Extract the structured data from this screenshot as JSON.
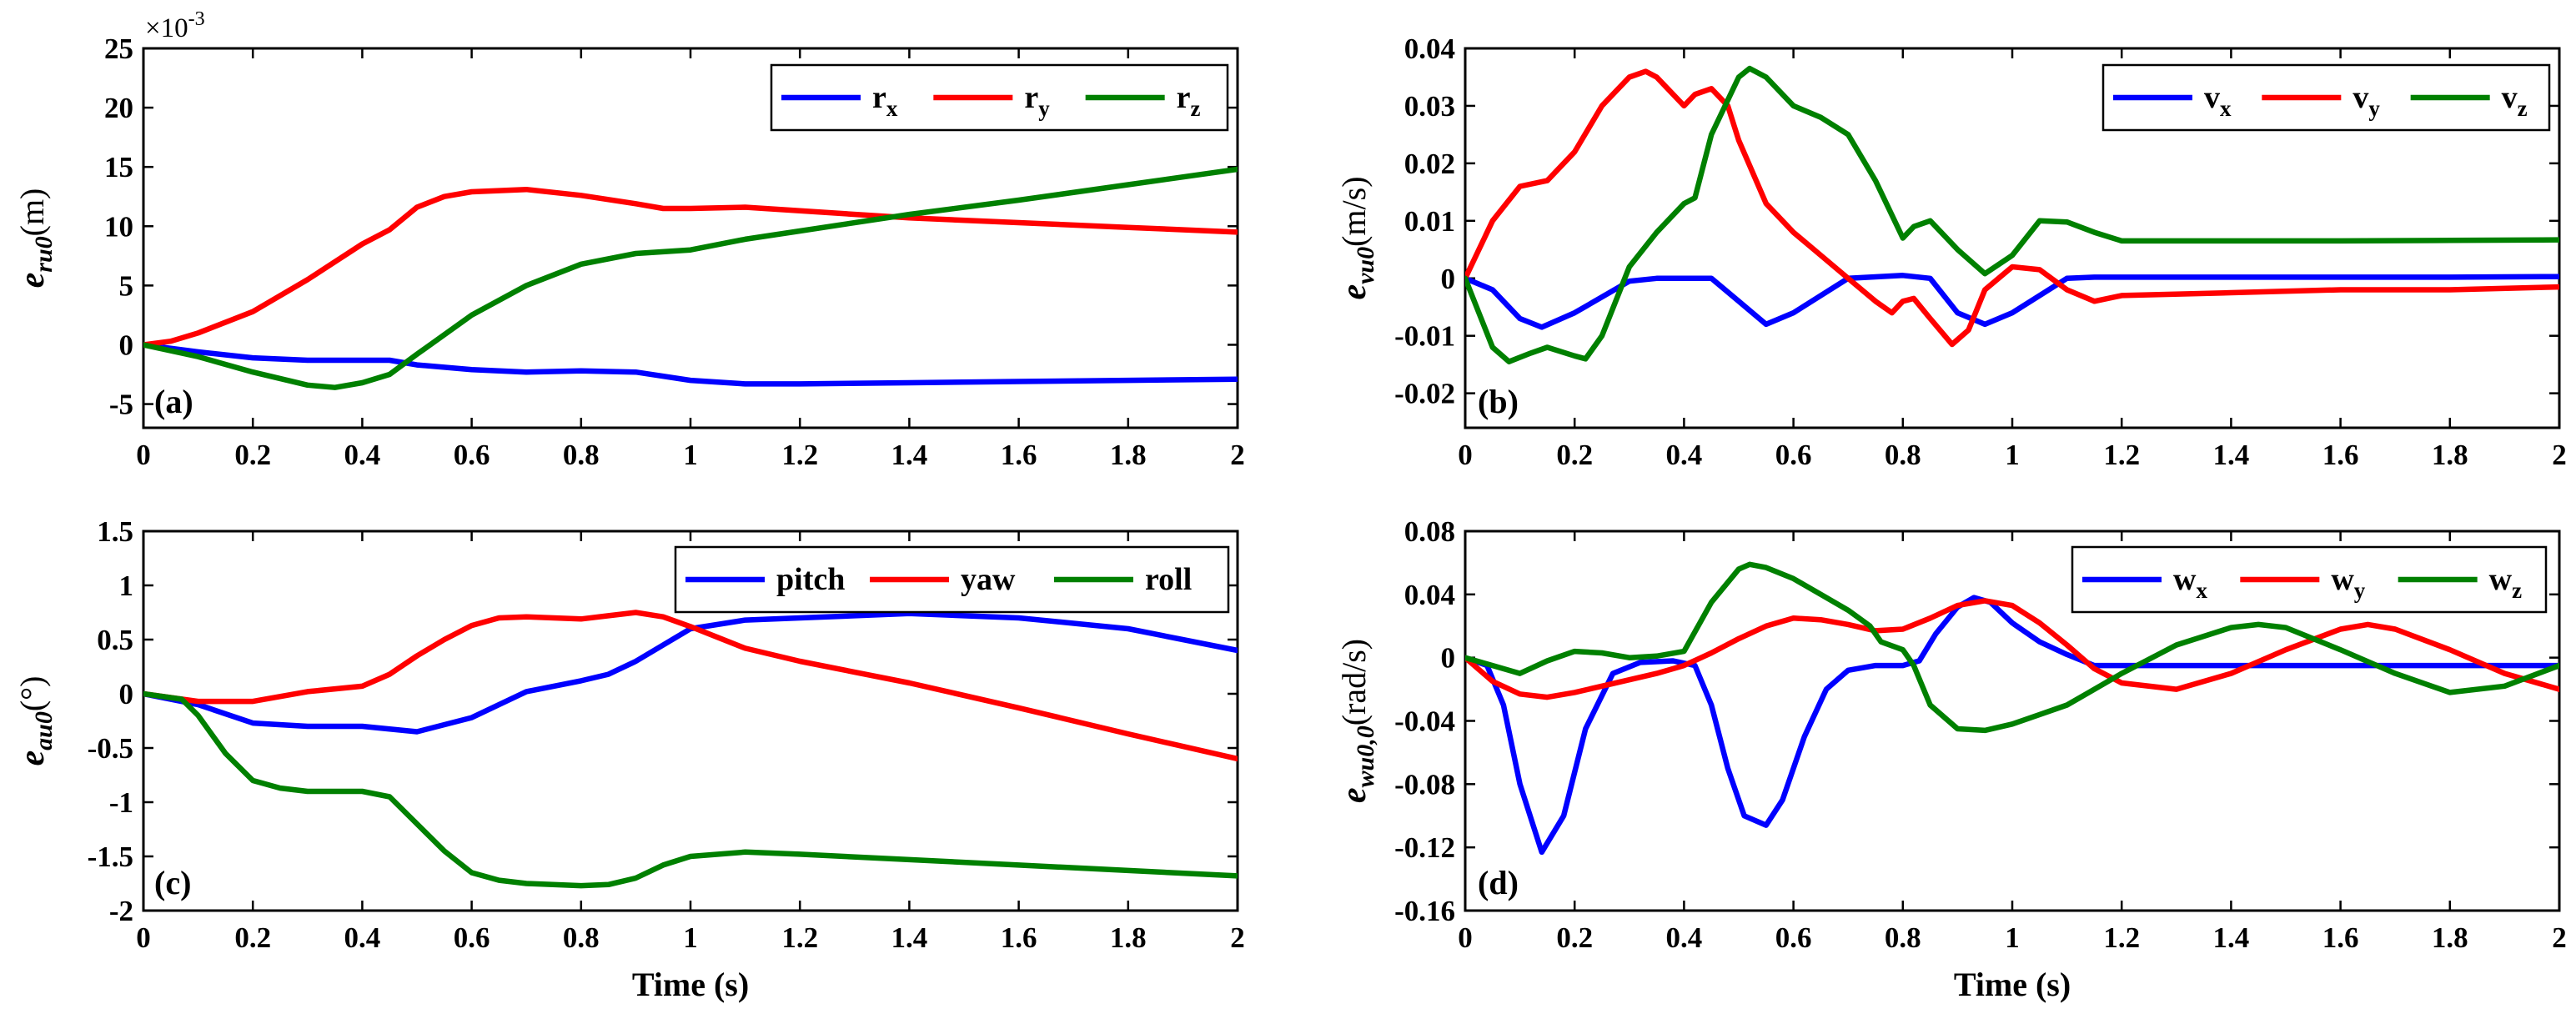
{
  "colors": {
    "blue": "#0000ff",
    "red": "#ff0000",
    "green": "#008000"
  },
  "chart_data": [
    {
      "type": "line",
      "panel": "(a)",
      "ylabel": {
        "main": "e",
        "sub": "ru0",
        "unit": "(m)"
      },
      "exponent": {
        "base": "×10",
        "power": "-3"
      },
      "xlabel": "",
      "xlim": [
        0,
        2
      ],
      "ylim": [
        -7,
        25
      ],
      "xticks": [
        0,
        0.2,
        0.4,
        0.6,
        0.8,
        1,
        1.2,
        1.4,
        1.6,
        1.8,
        2
      ],
      "xticklabels": [
        "0",
        "0.2",
        "0.4",
        "0.6",
        "0.8",
        "1",
        "1.2",
        "1.4",
        "1.6",
        "1.8",
        "2"
      ],
      "yticks": [
        -5,
        0,
        5,
        10,
        15,
        20,
        25
      ],
      "yticklabels": [
        "-5",
        "0",
        "5",
        "10",
        "15",
        "20",
        "25"
      ],
      "legend": {
        "position": "top-right"
      },
      "series": [
        {
          "name": "r",
          "sub": "x",
          "color": "blue",
          "x": [
            0,
            0.1,
            0.2,
            0.3,
            0.4,
            0.45,
            0.5,
            0.6,
            0.7,
            0.8,
            0.9,
            1.0,
            1.1,
            1.2,
            1.4,
            1.6,
            1.8,
            2.0
          ],
          "y": [
            0,
            -0.6,
            -1.1,
            -1.3,
            -1.3,
            -1.3,
            -1.7,
            -2.1,
            -2.3,
            -2.2,
            -2.3,
            -3.0,
            -3.3,
            -3.3,
            -3.2,
            -3.1,
            -3.0,
            -2.9
          ]
        },
        {
          "name": "r",
          "sub": "y",
          "color": "red",
          "x": [
            0,
            0.05,
            0.1,
            0.2,
            0.3,
            0.4,
            0.45,
            0.5,
            0.55,
            0.6,
            0.7,
            0.8,
            0.9,
            0.95,
            1.0,
            1.1,
            1.2,
            1.4,
            1.6,
            1.8,
            2.0
          ],
          "y": [
            0,
            0.3,
            1.0,
            2.8,
            5.5,
            8.5,
            9.7,
            11.6,
            12.5,
            12.9,
            13.1,
            12.6,
            11.9,
            11.5,
            11.5,
            11.6,
            11.3,
            10.7,
            10.3,
            9.9,
            9.5
          ]
        },
        {
          "name": "r",
          "sub": "z",
          "color": "green",
          "x": [
            0,
            0.1,
            0.2,
            0.3,
            0.35,
            0.4,
            0.45,
            0.5,
            0.6,
            0.7,
            0.8,
            0.9,
            1.0,
            1.1,
            1.2,
            1.4,
            1.6,
            1.8,
            2.0
          ],
          "y": [
            0,
            -1.0,
            -2.3,
            -3.4,
            -3.6,
            -3.2,
            -2.5,
            -0.8,
            2.5,
            5.0,
            6.8,
            7.7,
            8.0,
            8.9,
            9.6,
            11.0,
            12.2,
            13.5,
            14.8
          ]
        }
      ]
    },
    {
      "type": "line",
      "panel": "(b)",
      "ylabel": {
        "main": "e",
        "sub": "vu0",
        "unit": "(m/s)"
      },
      "xlabel": "",
      "xlim": [
        0,
        2
      ],
      "ylim": [
        -0.026,
        0.04
      ],
      "xticks": [
        0,
        0.2,
        0.4,
        0.6,
        0.8,
        1,
        1.2,
        1.4,
        1.6,
        1.8,
        2
      ],
      "xticklabels": [
        "0",
        "0.2",
        "0.4",
        "0.6",
        "0.8",
        "1",
        "1.2",
        "1.4",
        "1.6",
        "1.8",
        "2"
      ],
      "yticks": [
        -0.02,
        -0.01,
        0,
        0.01,
        0.02,
        0.03,
        0.04
      ],
      "yticklabels": [
        "-0.02",
        "-0.01",
        "0",
        "0.01",
        "0.02",
        "0.03",
        "0.04"
      ],
      "legend": {
        "position": "top-right"
      },
      "series": [
        {
          "name": "v",
          "sub": "x",
          "color": "blue",
          "x": [
            0,
            0.05,
            0.1,
            0.14,
            0.2,
            0.3,
            0.35,
            0.4,
            0.45,
            0.5,
            0.55,
            0.6,
            0.7,
            0.8,
            0.85,
            0.9,
            0.95,
            1.0,
            1.1,
            1.15,
            1.2,
            1.4,
            1.6,
            1.8,
            2.0
          ],
          "y": [
            0,
            -0.002,
            -0.007,
            -0.0085,
            -0.006,
            -0.0005,
            0,
            0,
            0,
            -0.004,
            -0.008,
            -0.006,
            0,
            0.0005,
            0,
            -0.006,
            -0.008,
            -0.006,
            0,
            0.0002,
            0.0002,
            0.0002,
            0.0002,
            0.0002,
            0.0003
          ]
        },
        {
          "name": "v",
          "sub": "y",
          "color": "red",
          "x": [
            0,
            0.05,
            0.1,
            0.15,
            0.2,
            0.25,
            0.3,
            0.33,
            0.35,
            0.4,
            0.42,
            0.45,
            0.48,
            0.5,
            0.55,
            0.6,
            0.65,
            0.7,
            0.75,
            0.78,
            0.8,
            0.82,
            0.85,
            0.89,
            0.92,
            0.95,
            1.0,
            1.05,
            1.1,
            1.15,
            1.2,
            1.4,
            1.6,
            1.8,
            2.0
          ],
          "y": [
            0,
            0.01,
            0.016,
            0.017,
            0.022,
            0.03,
            0.035,
            0.036,
            0.035,
            0.03,
            0.032,
            0.033,
            0.03,
            0.024,
            0.013,
            0.008,
            0.004,
            0,
            -0.004,
            -0.006,
            -0.004,
            -0.0035,
            -0.007,
            -0.0115,
            -0.009,
            -0.002,
            0.002,
            0.0015,
            -0.002,
            -0.004,
            -0.003,
            -0.0025,
            -0.002,
            -0.002,
            -0.0015
          ]
        },
        {
          "name": "v",
          "sub": "z",
          "color": "green",
          "x": [
            0,
            0.05,
            0.08,
            0.12,
            0.15,
            0.2,
            0.22,
            0.25,
            0.3,
            0.35,
            0.4,
            0.42,
            0.45,
            0.5,
            0.52,
            0.55,
            0.6,
            0.65,
            0.7,
            0.75,
            0.8,
            0.82,
            0.85,
            0.9,
            0.95,
            1.0,
            1.05,
            1.1,
            1.15,
            1.2,
            1.4,
            1.6,
            1.8,
            2.0
          ],
          "y": [
            0,
            -0.012,
            -0.0145,
            -0.013,
            -0.012,
            -0.0135,
            -0.014,
            -0.01,
            0.002,
            0.008,
            0.013,
            0.014,
            0.025,
            0.035,
            0.0365,
            0.035,
            0.03,
            0.028,
            0.025,
            0.017,
            0.007,
            0.009,
            0.01,
            0.005,
            0.0008,
            0.004,
            0.01,
            0.0098,
            0.008,
            0.0065,
            0.0065,
            0.0065,
            0.0066,
            0.0067
          ]
        }
      ]
    },
    {
      "type": "line",
      "panel": "(c)",
      "ylabel": {
        "main": "e",
        "sub": "au0",
        "unit": "(°)"
      },
      "xlabel": "Time (s)",
      "xlim": [
        0,
        2
      ],
      "ylim": [
        -2,
        1.5
      ],
      "xticks": [
        0,
        0.2,
        0.4,
        0.6,
        0.8,
        1,
        1.2,
        1.4,
        1.6,
        1.8,
        2
      ],
      "xticklabels": [
        "0",
        "0.2",
        "0.4",
        "0.6",
        "0.8",
        "1",
        "1.2",
        "1.4",
        "1.6",
        "1.8",
        "2"
      ],
      "yticks": [
        -2,
        -1.5,
        -1,
        -0.5,
        0,
        0.5,
        1,
        1.5
      ],
      "yticklabels": [
        "-2",
        "-1.5",
        "-1",
        "-0.5",
        "0",
        "0.5",
        "1",
        "1.5"
      ],
      "legend": {
        "position": "top-right"
      },
      "series": [
        {
          "name": "pitch",
          "sub": "",
          "color": "blue",
          "x": [
            0,
            0.1,
            0.2,
            0.3,
            0.4,
            0.5,
            0.6,
            0.7,
            0.8,
            0.85,
            0.9,
            0.95,
            1.0,
            1.1,
            1.2,
            1.4,
            1.6,
            1.8,
            2.0
          ],
          "y": [
            0,
            -0.1,
            -0.27,
            -0.3,
            -0.3,
            -0.35,
            -0.22,
            0.02,
            0.12,
            0.18,
            0.3,
            0.45,
            0.6,
            0.68,
            0.7,
            0.74,
            0.7,
            0.6,
            0.4
          ]
        },
        {
          "name": "yaw",
          "sub": "",
          "color": "red",
          "x": [
            0,
            0.1,
            0.2,
            0.3,
            0.4,
            0.45,
            0.5,
            0.55,
            0.6,
            0.65,
            0.7,
            0.8,
            0.85,
            0.9,
            0.95,
            1.0,
            1.1,
            1.2,
            1.4,
            1.6,
            1.8,
            2.0
          ],
          "y": [
            0,
            -0.07,
            -0.07,
            0.02,
            0.07,
            0.18,
            0.35,
            0.5,
            0.63,
            0.7,
            0.71,
            0.69,
            0.72,
            0.75,
            0.71,
            0.62,
            0.42,
            0.3,
            0.1,
            -0.13,
            -0.37,
            -0.6
          ]
        },
        {
          "name": "roll",
          "sub": "",
          "color": "green",
          "x": [
            0,
            0.07,
            0.1,
            0.15,
            0.2,
            0.25,
            0.3,
            0.4,
            0.45,
            0.5,
            0.55,
            0.6,
            0.65,
            0.7,
            0.8,
            0.85,
            0.9,
            0.95,
            1.0,
            1.1,
            1.2,
            1.4,
            1.6,
            1.8,
            2.0
          ],
          "y": [
            0,
            -0.05,
            -0.2,
            -0.55,
            -0.8,
            -0.87,
            -0.9,
            -0.9,
            -0.95,
            -1.2,
            -1.45,
            -1.65,
            -1.72,
            -1.75,
            -1.77,
            -1.76,
            -1.7,
            -1.58,
            -1.5,
            -1.46,
            -1.48,
            -1.53,
            -1.58,
            -1.63,
            -1.68
          ]
        }
      ]
    },
    {
      "type": "line",
      "panel": "(d)",
      "ylabel": {
        "main": "e",
        "sub": "wu0,0",
        "unit": "(rad/s)"
      },
      "xlabel": "Time (s)",
      "xlim": [
        0,
        2
      ],
      "ylim": [
        -0.16,
        0.08
      ],
      "xticks": [
        0,
        0.2,
        0.4,
        0.6,
        0.8,
        1,
        1.2,
        1.4,
        1.6,
        1.8,
        2
      ],
      "xticklabels": [
        "0",
        "0.2",
        "0.4",
        "0.6",
        "0.8",
        "1",
        "1.2",
        "1.4",
        "1.6",
        "1.8",
        "2"
      ],
      "yticks": [
        -0.16,
        -0.12,
        -0.08,
        -0.04,
        0,
        0.04,
        0.08
      ],
      "yticklabels": [
        "-0.16",
        "-0.12",
        "-0.08",
        "-0.04",
        "0",
        "0.04",
        "0.08"
      ],
      "legend": {
        "position": "top-right"
      },
      "series": [
        {
          "name": "w",
          "sub": "x",
          "color": "blue",
          "x": [
            0,
            0.04,
            0.07,
            0.1,
            0.14,
            0.18,
            0.22,
            0.27,
            0.32,
            0.38,
            0.42,
            0.45,
            0.48,
            0.51,
            0.55,
            0.58,
            0.62,
            0.66,
            0.7,
            0.75,
            0.8,
            0.83,
            0.86,
            0.9,
            0.93,
            0.96,
            1.0,
            1.05,
            1.1,
            1.15,
            1.2,
            1.4,
            1.6,
            1.8,
            2.0
          ],
          "y": [
            0,
            -0.005,
            -0.03,
            -0.08,
            -0.123,
            -0.1,
            -0.045,
            -0.01,
            -0.003,
            -0.002,
            -0.005,
            -0.03,
            -0.07,
            -0.1,
            -0.106,
            -0.09,
            -0.05,
            -0.02,
            -0.008,
            -0.005,
            -0.005,
            -0.002,
            0.015,
            0.032,
            0.038,
            0.035,
            0.022,
            0.01,
            0.002,
            -0.005,
            -0.005,
            -0.005,
            -0.005,
            -0.005,
            -0.005
          ]
        },
        {
          "name": "w",
          "sub": "y",
          "color": "red",
          "x": [
            0,
            0.05,
            0.1,
            0.15,
            0.2,
            0.25,
            0.3,
            0.35,
            0.4,
            0.45,
            0.5,
            0.55,
            0.6,
            0.65,
            0.7,
            0.75,
            0.8,
            0.85,
            0.9,
            0.95,
            1.0,
            1.05,
            1.1,
            1.15,
            1.2,
            1.3,
            1.4,
            1.5,
            1.6,
            1.65,
            1.7,
            1.8,
            1.9,
            2.0
          ],
          "y": [
            0,
            -0.015,
            -0.023,
            -0.025,
            -0.022,
            -0.018,
            -0.014,
            -0.01,
            -0.005,
            0.003,
            0.012,
            0.02,
            0.025,
            0.024,
            0.021,
            0.017,
            0.018,
            0.025,
            0.033,
            0.036,
            0.033,
            0.022,
            0.008,
            -0.007,
            -0.016,
            -0.02,
            -0.01,
            0.005,
            0.018,
            0.021,
            0.018,
            0.005,
            -0.01,
            -0.02
          ]
        },
        {
          "name": "w",
          "sub": "z",
          "color": "green",
          "x": [
            0,
            0.05,
            0.1,
            0.15,
            0.2,
            0.25,
            0.3,
            0.35,
            0.4,
            0.45,
            0.5,
            0.52,
            0.55,
            0.6,
            0.65,
            0.7,
            0.74,
            0.76,
            0.8,
            0.82,
            0.85,
            0.9,
            0.95,
            1.0,
            1.05,
            1.1,
            1.14,
            1.2,
            1.3,
            1.4,
            1.45,
            1.5,
            1.6,
            1.7,
            1.8,
            1.9,
            2.0
          ],
          "y": [
            0,
            -0.005,
            -0.01,
            -0.002,
            0.004,
            0.003,
            0,
            0.001,
            0.004,
            0.035,
            0.056,
            0.059,
            0.057,
            0.05,
            0.04,
            0.03,
            0.02,
            0.01,
            0.005,
            -0.005,
            -0.03,
            -0.045,
            -0.046,
            -0.042,
            -0.036,
            -0.03,
            -0.022,
            -0.01,
            0.008,
            0.019,
            0.021,
            0.019,
            0.005,
            -0.01,
            -0.022,
            -0.018,
            -0.005
          ]
        }
      ]
    }
  ]
}
